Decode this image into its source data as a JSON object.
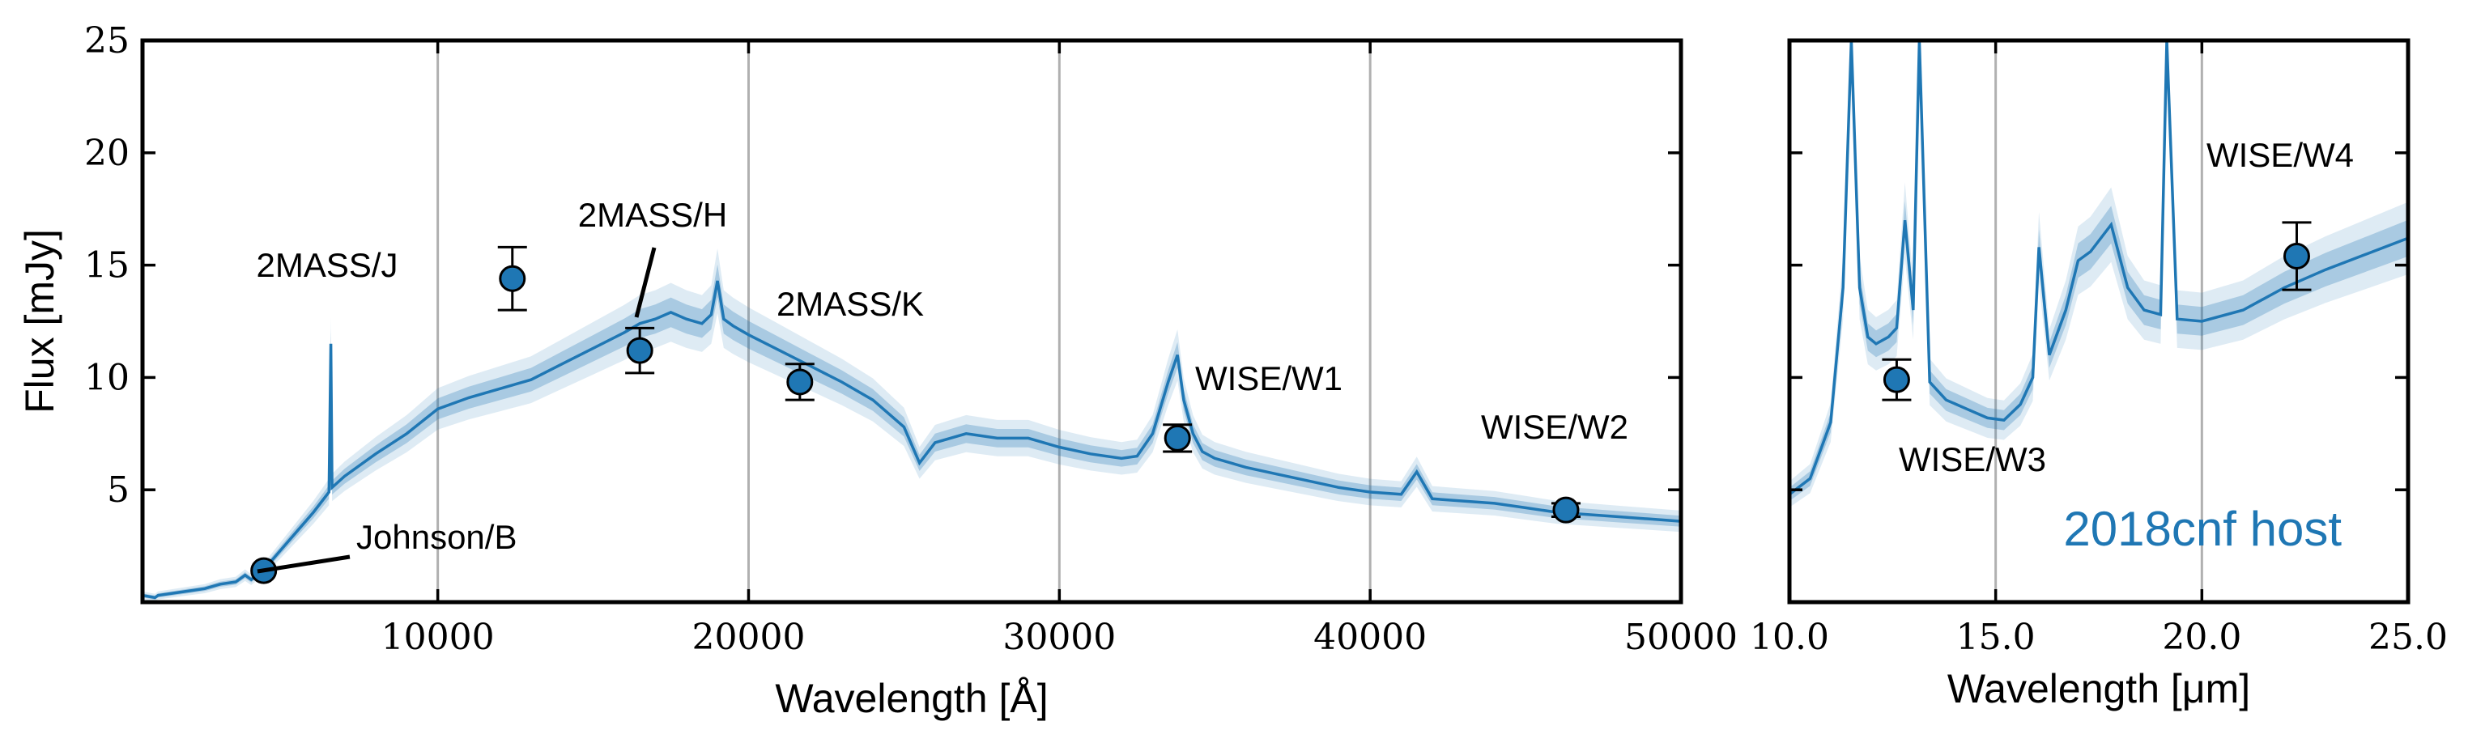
{
  "chart_data": [
    {
      "type": "line",
      "xlabel": "Wavelength [Å]",
      "ylabel": "Flux [mJy]",
      "xlim": [
        500,
        50000
      ],
      "ylim": [
        0,
        25
      ],
      "xticks": [
        "10000",
        "20000",
        "30000",
        "40000",
        "50000"
      ],
      "xtick_values": [
        10000,
        20000,
        30000,
        40000,
        50000
      ],
      "yticks": [
        "5",
        "10",
        "15",
        "20",
        "25"
      ],
      "ytick_values": [
        5,
        10,
        15,
        20,
        25
      ],
      "grid": "vertical",
      "line_color": "#1f77b4",
      "model": {
        "x": [
          500,
          900,
          1000,
          1500,
          2000,
          2500,
          3000,
          3500,
          3800,
          4000,
          4500,
          5000,
          5500,
          6000,
          6500,
          6560,
          6600,
          7000,
          8000,
          9000,
          10000,
          11000,
          12000,
          13000,
          14000,
          15000,
          16000,
          16500,
          17000,
          17500,
          18000,
          18500,
          18800,
          19000,
          19200,
          19500,
          20000,
          21000,
          22000,
          23000,
          24000,
          25000,
          25500,
          26000,
          27000,
          28000,
          29000,
          30000,
          31000,
          32000,
          32500,
          33000,
          33500,
          33800,
          34000,
          34300,
          34600,
          35000,
          36000,
          37000,
          38000,
          39000,
          40000,
          41000,
          41500,
          42000,
          43000,
          44000,
          45000,
          46000,
          47000,
          48000,
          49000,
          50000
        ],
        "y": [
          0.3,
          0.2,
          0.3,
          0.4,
          0.5,
          0.6,
          0.8,
          0.9,
          1.2,
          1.0,
          1.6,
          2.4,
          3.2,
          4.0,
          4.9,
          11.5,
          5.1,
          5.6,
          6.6,
          7.5,
          8.6,
          9.1,
          9.5,
          9.9,
          10.6,
          11.3,
          12.0,
          12.4,
          12.6,
          12.9,
          12.6,
          12.4,
          12.8,
          14.3,
          12.6,
          12.3,
          11.9,
          11.2,
          10.5,
          9.8,
          9.0,
          7.8,
          6.2,
          7.1,
          7.5,
          7.3,
          7.3,
          6.9,
          6.6,
          6.4,
          6.5,
          7.5,
          9.8,
          11.0,
          9.0,
          7.5,
          6.7,
          6.4,
          6.0,
          5.7,
          5.4,
          5.1,
          4.9,
          4.8,
          5.8,
          4.6,
          4.5,
          4.4,
          4.2,
          4.0,
          3.9,
          3.8,
          3.7,
          3.6
        ]
      },
      "photometry": [
        {
          "label": "Johnson/B",
          "x": 4400,
          "y": 1.4,
          "yerr": 0.0
        },
        {
          "label": "2MASS/J",
          "x": 12400,
          "y": 14.4,
          "yerr": 1.4
        },
        {
          "label": "2MASS/H",
          "x": 16500,
          "y": 11.2,
          "yerr": 1.0
        },
        {
          "label": "2MASS/K",
          "x": 21650,
          "y": 9.8,
          "yerr": 0.8
        },
        {
          "label": "WISE/W1",
          "x": 33800,
          "y": 7.3,
          "yerr": 0.6
        },
        {
          "label": "WISE/W2",
          "x": 46300,
          "y": 4.1,
          "yerr": 0.3
        }
      ]
    },
    {
      "type": "line",
      "xlabel": "Wavelength [μm]",
      "xlim": [
        10.0,
        25.0
      ],
      "ylim": [
        0,
        25
      ],
      "xticks": [
        "10.0",
        "15.0",
        "20.0",
        "25.0"
      ],
      "xtick_values": [
        10.0,
        15.0,
        20.0,
        25.0
      ],
      "grid": "vertical",
      "line_color": "#1f77b4",
      "annotation": "2018cnf host",
      "model": {
        "x": [
          10.0,
          10.5,
          11.0,
          11.3,
          11.5,
          11.7,
          11.9,
          12.1,
          12.4,
          12.6,
          12.8,
          13.0,
          13.15,
          13.4,
          13.8,
          14.3,
          14.8,
          15.2,
          15.6,
          15.9,
          16.05,
          16.3,
          16.7,
          17.0,
          17.3,
          17.8,
          18.2,
          18.6,
          19.0,
          19.15,
          19.4,
          20.0,
          21.0,
          22.0,
          23.0,
          24.0,
          25.0
        ],
        "y": [
          4.8,
          5.5,
          8.0,
          14.0,
          26.0,
          14.0,
          11.8,
          11.5,
          11.8,
          12.2,
          17.0,
          13.0,
          26.0,
          9.8,
          9.0,
          8.6,
          8.2,
          8.1,
          8.8,
          10.0,
          15.8,
          11.0,
          13.0,
          15.2,
          15.6,
          16.8,
          14.0,
          13.0,
          12.8,
          26.0,
          12.6,
          12.5,
          13.0,
          14.0,
          14.8,
          15.5,
          16.2
        ]
      },
      "photometry": [
        {
          "label": "WISE/W3",
          "x": 12.6,
          "y": 9.9,
          "yerr": 0.9
        },
        {
          "label": "WISE/W4",
          "x": 22.3,
          "y": 15.4,
          "yerr": 1.5
        }
      ]
    }
  ]
}
